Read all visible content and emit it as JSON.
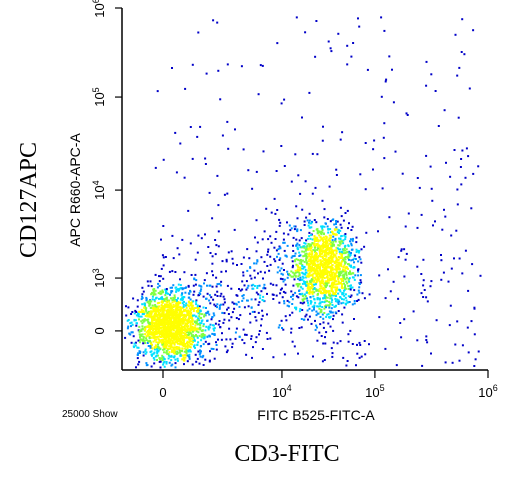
{
  "chart_data": {
    "type": "scatter",
    "subtype": "flow-cytometry-density-dot-plot",
    "scale": "biexponential",
    "outer_xlabel": "CD3-FITC",
    "outer_ylabel": "CD127APC",
    "xlabel": "FITC B525-FITC-A",
    "ylabel": "APC R660-APC-A",
    "event_count_label": "25000 Show",
    "xlim": [
      -900,
      1000000
    ],
    "ylim": [
      -1000,
      1000000
    ],
    "x_ticks": [
      {
        "value": 0,
        "label": "0"
      },
      {
        "value": 10000,
        "base": "10",
        "exp": "4"
      },
      {
        "value": 100000,
        "base": "10",
        "exp": "5"
      },
      {
        "value": 1000000,
        "base": "10",
        "exp": "6"
      }
    ],
    "y_ticks": [
      {
        "value": 0,
        "label": "0"
      },
      {
        "value": 1000,
        "base": "10",
        "exp": "3"
      },
      {
        "value": 10000,
        "base": "10",
        "exp": "4"
      },
      {
        "value": 100000,
        "base": "10",
        "exp": "5"
      },
      {
        "value": 1000000,
        "base": "10",
        "exp": "6"
      }
    ],
    "populations": [
      {
        "name": "",
        "center_x": 150,
        "center_y": 0,
        "shape": "dense cluster, lower-left"
      },
      {
        "name": "",
        "center_x": 50000,
        "center_y": 3000,
        "shape": "dense cluster, upper-right"
      }
    ],
    "density_colors": [
      "#0000c8",
      "#0090ff",
      "#00e0ff",
      "#7fff40",
      "#ffff00"
    ]
  }
}
